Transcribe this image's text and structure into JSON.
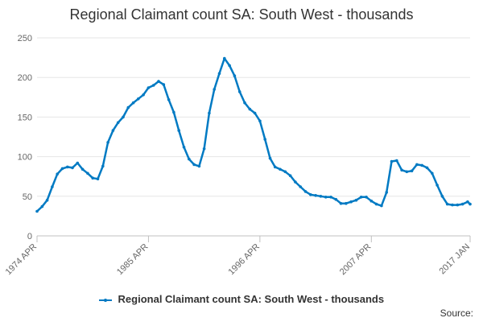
{
  "chart_data": {
    "type": "line",
    "title": "Regional Claimant count SA: South West - thousands",
    "xlabel": "",
    "ylabel": "",
    "x_range": [
      "1974 APR",
      "2017 JAN"
    ],
    "x_ticks": [
      "1974 APR",
      "1985 APR",
      "1996 APR",
      "2007 APR",
      "2017 JAN"
    ],
    "ylim": [
      0,
      250
    ],
    "y_ticks": [
      0,
      50,
      100,
      150,
      200,
      250
    ],
    "grid": "horizontal",
    "legend_position": "bottom",
    "series": [
      {
        "name": "Regional Claimant count SA: South West - thousands",
        "color": "#007ac3",
        "points": [
          [
            "1974 APR",
            31
          ],
          [
            "1974 OCT",
            37
          ],
          [
            "1975 APR",
            45
          ],
          [
            "1975 OCT",
            62
          ],
          [
            "1976 APR",
            78
          ],
          [
            "1976 OCT",
            85
          ],
          [
            "1977 APR",
            87
          ],
          [
            "1977 OCT",
            86
          ],
          [
            "1978 APR",
            92
          ],
          [
            "1978 OCT",
            84
          ],
          [
            "1979 APR",
            79
          ],
          [
            "1979 OCT",
            73
          ],
          [
            "1980 APR",
            72
          ],
          [
            "1980 OCT",
            88
          ],
          [
            "1981 APR",
            118
          ],
          [
            "1981 OCT",
            133
          ],
          [
            "1982 APR",
            143
          ],
          [
            "1982 OCT",
            150
          ],
          [
            "1983 APR",
            162
          ],
          [
            "1983 OCT",
            168
          ],
          [
            "1984 APR",
            173
          ],
          [
            "1984 OCT",
            178
          ],
          [
            "1985 APR",
            187
          ],
          [
            "1985 OCT",
            190
          ],
          [
            "1986 APR",
            195
          ],
          [
            "1986 OCT",
            191
          ],
          [
            "1987 APR",
            172
          ],
          [
            "1987 OCT",
            156
          ],
          [
            "1988 APR",
            133
          ],
          [
            "1988 OCT",
            112
          ],
          [
            "1989 APR",
            97
          ],
          [
            "1989 OCT",
            90
          ],
          [
            "1990 APR",
            88
          ],
          [
            "1990 OCT",
            110
          ],
          [
            "1991 APR",
            155
          ],
          [
            "1991 OCT",
            185
          ],
          [
            "1992 APR",
            205
          ],
          [
            "1992 OCT",
            224
          ],
          [
            "1993 APR",
            215
          ],
          [
            "1993 OCT",
            202
          ],
          [
            "1994 APR",
            182
          ],
          [
            "1994 OCT",
            168
          ],
          [
            "1995 APR",
            160
          ],
          [
            "1995 OCT",
            155
          ],
          [
            "1996 APR",
            145
          ],
          [
            "1996 OCT",
            122
          ],
          [
            "1997 APR",
            98
          ],
          [
            "1997 OCT",
            87
          ],
          [
            "1998 APR",
            84
          ],
          [
            "1998 OCT",
            81
          ],
          [
            "1999 APR",
            76
          ],
          [
            "1999 OCT",
            68
          ],
          [
            "2000 APR",
            62
          ],
          [
            "2000 OCT",
            56
          ],
          [
            "2001 APR",
            52
          ],
          [
            "2001 OCT",
            51
          ],
          [
            "2002 APR",
            50
          ],
          [
            "2002 OCT",
            49
          ],
          [
            "2003 APR",
            49
          ],
          [
            "2003 OCT",
            46
          ],
          [
            "2004 APR",
            41
          ],
          [
            "2004 OCT",
            41
          ],
          [
            "2005 APR",
            43
          ],
          [
            "2005 OCT",
            45
          ],
          [
            "2006 APR",
            49
          ],
          [
            "2006 OCT",
            49
          ],
          [
            "2007 APR",
            44
          ],
          [
            "2007 OCT",
            40
          ],
          [
            "2008 APR",
            38
          ],
          [
            "2008 OCT",
            55
          ],
          [
            "2009 APR",
            94
          ],
          [
            "2009 OCT",
            95
          ],
          [
            "2010 APR",
            83
          ],
          [
            "2010 OCT",
            81
          ],
          [
            "2011 APR",
            82
          ],
          [
            "2011 OCT",
            90
          ],
          [
            "2012 APR",
            89
          ],
          [
            "2012 OCT",
            86
          ],
          [
            "2013 APR",
            79
          ],
          [
            "2013 OCT",
            64
          ],
          [
            "2014 APR",
            50
          ],
          [
            "2014 OCT",
            40
          ],
          [
            "2015 APR",
            39
          ],
          [
            "2015 OCT",
            39
          ],
          [
            "2016 APR",
            40
          ],
          [
            "2016 OCT",
            43
          ],
          [
            "2017 JAN",
            40
          ]
        ]
      }
    ]
  },
  "footer": {
    "source_label": "Source:"
  }
}
